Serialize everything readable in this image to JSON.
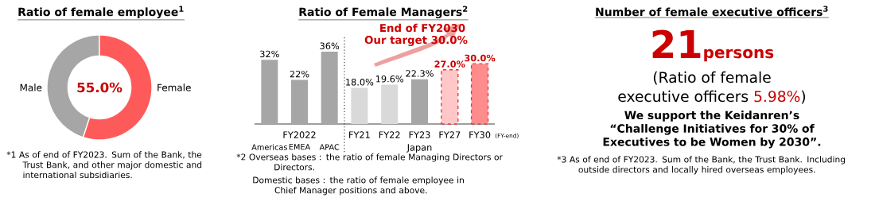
{
  "chart_data": [
    {
      "type": "donut",
      "title": "Ratio of female employee$^{1}$",
      "categories": [
        "Male",
        "Female"
      ],
      "values": [
        45,
        55
      ],
      "colors": [
        "#a6a6a6",
        "#ff5a5a"
      ],
      "value_labels": [
        null,
        "55.0%"
      ],
      "annotations": [
        "*1 As of end of FY2023. Sum of the Bank, the Trust Bank, and other major domestic and international subsidiaries."
      ]
    },
    {
      "type": "bar",
      "title": "Ratio of Female Managers$^{2}$",
      "xlabel": "FY2022",
      "categories": [
        "Americas",
        "EMEA",
        "APAC"
      ],
      "values": [
        32,
        22,
        36
      ],
      "colors": [
        "#a6a6a6",
        "#a6a6a6",
        "#a6a6a6"
      ],
      "value_labels": [
        "32%",
        "22%",
        "36%"
      ],
      "annotations": [
        "*2 Overseas bases : the ratio of female Managing Directors or Directors.",
        "Domestic bases : the ratio of female employee in Chief Manager positions and above."
      ]
    },
    {
      "type": "bar",
      "xlabel": "Japan",
      "categories": [
        "FY21",
        "FY22",
        "FY23",
        "FY27",
        "FY30"
      ],
      "series": [
        {
          "values": [
            18.0,
            19.6,
            22.3,
            null,
            null
          ],
          "colors": [
            "#d9d9d9",
            "#d9d9d9",
            "#a6a6a6",
            "#ffc7c7",
            "#ff8c8c"
          ],
          "value_labels": [
            "18.0%",
            "19.6%",
            "22.3%",
            null,
            null
          ]
        },
        {
          "values": [
            null,
            null,
            null,
            27.0,
            30.0
          ],
          "colors": [
            "#d9d9d9",
            "#d9d9d9",
            "#a6a6a6",
            "#ffc7c7",
            "#ff8c8c"
          ],
          "value_labels": [
            null,
            null,
            null,
            "27.0%",
            "30.0%"
          ],
          "line_style": "dashed"
        }
      ],
      "annotations": [
        "(FY-end)",
        "End of FY2030",
        "Our target 30.0%"
      ]
    },
    {
      "type": "other",
      "title": "Number of female executive officers$^{3}$",
      "annotations": [
        "21",
        "persons",
        "(Ratio of female",
        "executive officers",
        "5.98%",
        ")",
        "We support the Keidanren’s “Challenge Initiatives for 30% of Executives to be Women by 2030”.",
        "*3 As of end of FY2023. Sum of the Bank, the Trust Bank. Including outside directors and locally hired overseas employees."
      ]
    }
  ]
}
